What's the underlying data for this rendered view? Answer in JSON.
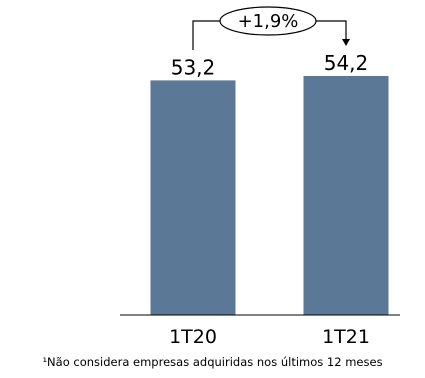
{
  "chart_data": {
    "type": "bar",
    "categories": [
      "1T20",
      "1T21"
    ],
    "values": [
      53.2,
      54.2
    ],
    "value_labels": [
      "53,2",
      "54,2"
    ],
    "growth_annotation": "+1,9%",
    "bar_color": "#5b7897",
    "footnote": "¹Não considera empresas adquiridas nos últimos 12 meses"
  }
}
